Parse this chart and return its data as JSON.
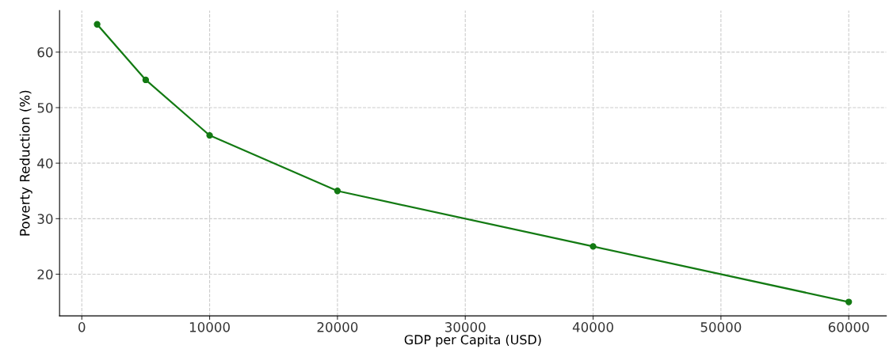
{
  "chart_data": {
    "type": "line",
    "xlabel": "GDP per Capita (USD)",
    "ylabel": "Poverty Reduction (%)",
    "x": [
      1200,
      5000,
      10000,
      20000,
      40000,
      60000
    ],
    "series": [
      {
        "color": "#137a13",
        "values": [
          65,
          55,
          45,
          35,
          25,
          15
        ]
      }
    ],
    "xlim": [
      -1740,
      62940
    ],
    "ylim": [
      12.5,
      67.5
    ],
    "xticks": [
      0,
      10000,
      20000,
      30000,
      40000,
      50000,
      60000
    ],
    "yticks": [
      20,
      30,
      40,
      50,
      60
    ],
    "grid": true,
    "marker": "circle",
    "line_style": "solid",
    "legend": false
  }
}
